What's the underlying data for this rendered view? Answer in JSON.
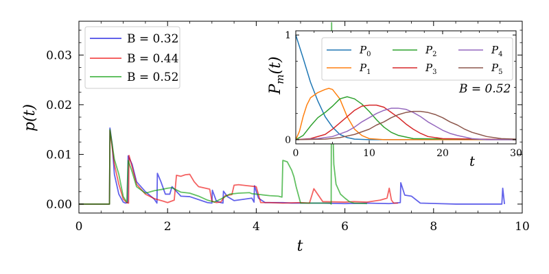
{
  "chart_data": [
    {
      "type": "line",
      "title": "",
      "xlabel": "t",
      "ylabel": "p(t)",
      "xlim": [
        0,
        10
      ],
      "ylim": [
        -0.0018,
        0.0368
      ],
      "xticks": [
        0,
        2,
        4,
        6,
        8,
        10
      ],
      "xtick_labels": [
        "0",
        "2",
        "4",
        "6",
        "8",
        "10"
      ],
      "yticks": [
        0.0,
        0.01,
        0.02,
        0.03
      ],
      "ytick_labels": [
        "0.00",
        "0.01",
        "0.02",
        "0.03"
      ],
      "legend": "top-left",
      "series": [
        {
          "name": "B = 0.32",
          "color": "#0000dd",
          "x": [
            0,
            0.69,
            0.7,
            0.75,
            0.8,
            0.9,
            1.0,
            1.05,
            1.1,
            1.11,
            1.2,
            1.3,
            1.5,
            1.7,
            1.76,
            1.77,
            1.85,
            1.95,
            2.05,
            2.1,
            2.3,
            2.5,
            2.9,
            3.0,
            3.01,
            3.1,
            3.2,
            3.25,
            3.26,
            3.35,
            3.5,
            3.9,
            3.95,
            3.96,
            4.05,
            4.2,
            4.6,
            4.8,
            5.0,
            5.5,
            6.0,
            6.5,
            7.0,
            7.25,
            7.26,
            7.35,
            7.5,
            7.7,
            8.5,
            9.0,
            9.5,
            9.54,
            9.56,
            9.6
          ],
          "y": [
            0,
            0,
            0.0153,
            0.012,
            0.006,
            0.002,
            0.0004,
            0.0002,
            0.0003,
            0.0097,
            0.008,
            0.0045,
            0.0025,
            0.001,
            0.0002,
            0.0062,
            0.0045,
            0.002,
            0.002,
            0.0035,
            0.0016,
            0.0015,
            0.0003,
            0.0002,
            0.0028,
            0.0006,
            0.0003,
            0.0002,
            0.0026,
            0.0015,
            0.0007,
            0.0012,
            0.0004,
            0.0037,
            0.0012,
            0.0003,
            0.0003,
            0.0002,
            0.0002,
            0.0002,
            0.0001,
            0.0002,
            0.0001,
            0.0003,
            0.0043,
            0.0018,
            0.0016,
            0.0002,
            0,
            0,
            0,
            0,
            0.0032,
            0
          ]
        },
        {
          "name": "B = 0.44",
          "color": "#ee0000",
          "x": [
            0,
            0.69,
            0.7,
            0.8,
            0.9,
            1.0,
            1.08,
            1.12,
            1.13,
            1.2,
            1.3,
            1.5,
            1.7,
            1.9,
            2.0,
            2.15,
            2.2,
            2.3,
            2.4,
            2.5,
            2.6,
            2.7,
            2.95,
            3.0,
            3.1,
            3.2,
            3.3,
            3.45,
            3.5,
            3.6,
            3.8,
            3.9,
            4.0,
            4.1,
            4.3,
            4.6,
            5.0,
            5.2,
            5.3,
            5.5,
            6.0,
            6.2,
            6.5,
            6.8,
            6.95,
            7.0,
            7.05,
            7.1,
            7.2
          ],
          "y": [
            0,
            0,
            0.0148,
            0.008,
            0.004,
            0.001,
            0.0003,
            0.0002,
            0.0098,
            0.0075,
            0.004,
            0.002,
            0.0011,
            0.0006,
            0.0003,
            0.0008,
            0.0058,
            0.0056,
            0.0059,
            0.006,
            0.0045,
            0.0035,
            0.003,
            0.0006,
            0.0003,
            0.0004,
            0.0017,
            0.0019,
            0.0038,
            0.0039,
            0.0037,
            0.0036,
            0.0035,
            0.0003,
            0.0003,
            0.0002,
            0.0003,
            0.0002,
            0.0031,
            0.0005,
            0.0004,
            0.0005,
            0.0004,
            0.0008,
            0.0012,
            0.0032,
            0.0008,
            0.0002,
            0.0002
          ]
        },
        {
          "name": "B = 0.52",
          "color": "#009900",
          "x": [
            0,
            0.69,
            0.7,
            0.8,
            0.9,
            1.0,
            1.08,
            1.11,
            1.2,
            1.3,
            1.5,
            1.7,
            1.9,
            2.0,
            2.1,
            2.3,
            2.5,
            2.7,
            2.9,
            3.05,
            3.2,
            3.4,
            3.6,
            3.85,
            3.9,
            4.0,
            4.1,
            4.3,
            4.5,
            4.58,
            4.6,
            4.7,
            4.8,
            4.85,
            4.9,
            5.0,
            5.2,
            5.5,
            5.67,
            5.69,
            5.7,
            5.72,
            5.75,
            5.8,
            5.9,
            6.0,
            6.1,
            6.2,
            6.5
          ],
          "y": [
            0,
            0,
            0.015,
            0.009,
            0.006,
            0.0015,
            0.0004,
            0.0088,
            0.0065,
            0.0035,
            0.0022,
            0.0027,
            0.003,
            0.0032,
            0.0033,
            0.0024,
            0.0022,
            0.0016,
            0.0008,
            0.0004,
            0.001,
            0.002,
            0.0022,
            0.0023,
            0.0021,
            0.002,
            0.0019,
            0.0017,
            0.0016,
            0.0014,
            0.0088,
            0.0085,
            0.0068,
            0.0055,
            0.0035,
            0.0002,
            0.0002,
            0.0002,
            0.0002,
            0.0,
            0.0365,
            0.018,
            0.008,
            0.004,
            0.002,
            0.0012,
            0.0005,
            0.0002,
            0.0001
          ]
        }
      ]
    },
    {
      "type": "line",
      "title": "",
      "xlabel": "t",
      "ylabel": "P_m(t)",
      "xlim": [
        0,
        30
      ],
      "ylim": [
        -0.04,
        1.04
      ],
      "xticks": [
        0,
        10,
        20,
        30
      ],
      "xtick_labels": [
        "0",
        "10",
        "20",
        "30"
      ],
      "yticks": [
        0,
        1
      ],
      "ytick_labels": [
        "0",
        "1"
      ],
      "legend": "top",
      "annotation": "B = 0.52",
      "series": [
        {
          "name": "P",
          "sub": "0",
          "color": "#1f77b4",
          "x": [
            0,
            1,
            2,
            3,
            4,
            5,
            6,
            7,
            8,
            10,
            30
          ],
          "y": [
            1,
            0.78,
            0.55,
            0.37,
            0.22,
            0.12,
            0.05,
            0.02,
            0.005,
            0,
            0
          ]
        },
        {
          "name": "P",
          "sub": "1",
          "color": "#ff7f0e",
          "x": [
            0,
            0.5,
            1,
            1.5,
            2,
            3,
            4,
            4.5,
            5,
            6,
            7,
            8,
            9,
            10,
            12,
            30
          ],
          "y": [
            0,
            0.08,
            0.22,
            0.33,
            0.4,
            0.45,
            0.48,
            0.49,
            0.48,
            0.39,
            0.22,
            0.1,
            0.04,
            0.01,
            0,
            0
          ]
        },
        {
          "name": "P",
          "sub": "2",
          "color": "#2ca02c",
          "x": [
            0,
            1,
            2,
            3,
            4,
            5,
            6,
            7,
            8,
            9,
            10,
            11,
            12,
            13,
            14,
            16,
            30
          ],
          "y": [
            0,
            0.04,
            0.13,
            0.21,
            0.26,
            0.32,
            0.39,
            0.41,
            0.39,
            0.34,
            0.27,
            0.19,
            0.12,
            0.07,
            0.04,
            0.01,
            0
          ]
        },
        {
          "name": "P",
          "sub": "3",
          "color": "#d62728",
          "x": [
            0,
            2,
            4,
            5,
            6,
            7,
            8,
            9,
            10,
            11,
            12,
            13,
            14,
            15,
            16,
            17,
            18,
            20,
            30
          ],
          "y": [
            0,
            0.01,
            0.05,
            0.1,
            0.16,
            0.22,
            0.28,
            0.32,
            0.33,
            0.33,
            0.31,
            0.26,
            0.21,
            0.15,
            0.1,
            0.06,
            0.03,
            0.01,
            0
          ]
        },
        {
          "name": "P",
          "sub": "4",
          "color": "#9467bd",
          "x": [
            0,
            3,
            5,
            7,
            8,
            9,
            10,
            11,
            12,
            13,
            14,
            15,
            16,
            17,
            18,
            19,
            20,
            21,
            22,
            24,
            26,
            30
          ],
          "y": [
            0,
            0.01,
            0.03,
            0.08,
            0.12,
            0.17,
            0.21,
            0.25,
            0.28,
            0.3,
            0.3,
            0.29,
            0.26,
            0.22,
            0.17,
            0.13,
            0.09,
            0.06,
            0.04,
            0.01,
            0,
            0
          ]
        },
        {
          "name": "P",
          "sub": "5",
          "color": "#8c564b",
          "x": [
            0,
            4,
            6,
            8,
            10,
            11,
            12,
            13,
            14,
            15,
            16,
            17,
            18,
            19,
            20,
            21,
            22,
            23,
            24,
            25,
            26,
            28,
            30
          ],
          "y": [
            0,
            0.005,
            0.02,
            0.05,
            0.1,
            0.14,
            0.17,
            0.21,
            0.24,
            0.26,
            0.27,
            0.27,
            0.26,
            0.24,
            0.21,
            0.17,
            0.14,
            0.1,
            0.07,
            0.05,
            0.03,
            0.01,
            0.005
          ]
        }
      ]
    }
  ]
}
